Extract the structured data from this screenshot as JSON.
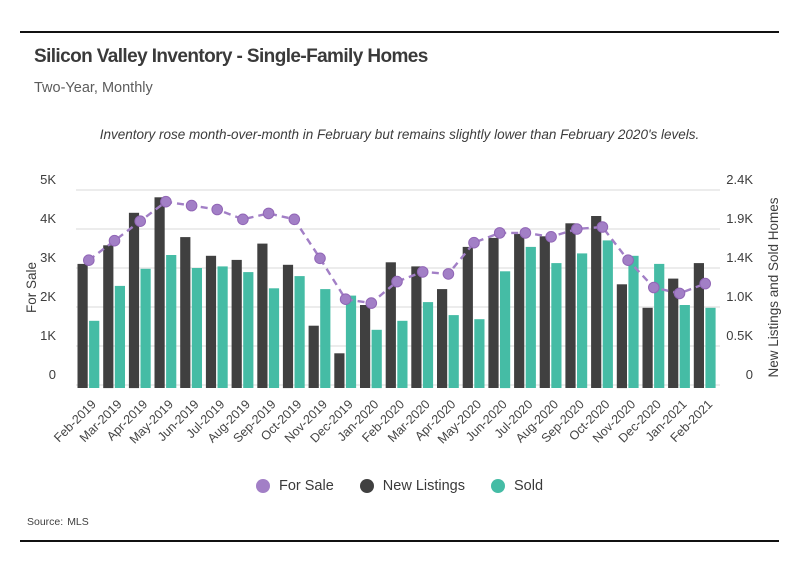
{
  "header": {
    "title": "Silicon Valley Inventory - Single-Family Homes",
    "subtitle": "Two-Year, Monthly",
    "annotation": "Inventory rose month-over-month in February but remains slightly lower than February 2020's levels."
  },
  "footer": {
    "source_label": "Source:",
    "source_value": "MLS"
  },
  "colors": {
    "for_sale": "#A27FC6",
    "for_sale_stroke": "#9166B6",
    "new_listings": "#404040",
    "sold": "#45BCA5",
    "grid": "#D9D9D9",
    "tick_text": "#3d3d3d",
    "axis_title_text": "#3d3d3d",
    "month_text": "#444444"
  },
  "chart_data": {
    "type": "bar+line",
    "title": "Silicon Valley Inventory - Single-Family Homes",
    "subtitle": "Two-Year, Monthly",
    "annotation": "Inventory rose month-over-month in February but remains slightly lower than February 2020's levels.",
    "grid": "horizontal-only",
    "categories": [
      "Feb-2019",
      "Mar-2019",
      "Apr-2019",
      "May-2019",
      "Jun-2019",
      "Jul-2019",
      "Aug-2019",
      "Sep-2019",
      "Oct-2019",
      "Nov-2019",
      "Dec-2019",
      "Jan-2020",
      "Feb-2020",
      "Mar-2020",
      "Apr-2020",
      "May-2020",
      "Jun-2020",
      "Jul-2020",
      "Aug-2020",
      "Sep-2020",
      "Oct-2020",
      "Nov-2020",
      "Dec-2020",
      "Jan-2021",
      "Feb-2021"
    ],
    "series": [
      {
        "name": "For Sale",
        "type": "line",
        "axis": "left",
        "style": "dashed-with-dots",
        "values": [
          3200,
          3700,
          4200,
          4700,
          4600,
          4500,
          4250,
          4400,
          4250,
          3250,
          2200,
          2100,
          2650,
          2900,
          2850,
          3650,
          3900,
          3900,
          3800,
          4000,
          4050,
          3200,
          2500,
          2350,
          2600
        ]
      },
      {
        "name": "New Listings",
        "type": "bar",
        "axis": "right",
        "values": [
          1490,
          1720,
          2120,
          2310,
          1820,
          1590,
          1540,
          1740,
          1480,
          730,
          390,
          985,
          1510,
          1460,
          1180,
          1700,
          1810,
          1860,
          1830,
          1990,
          2080,
          1240,
          950,
          1310,
          1500
        ]
      },
      {
        "name": "Sold",
        "type": "bar",
        "axis": "right",
        "values": [
          790,
          1220,
          1430,
          1600,
          1440,
          1460,
          1390,
          1190,
          1340,
          1180,
          1100,
          680,
          790,
          1020,
          860,
          810,
          1400,
          1700,
          1500,
          1620,
          1780,
          1590,
          1490,
          985,
          950
        ]
      }
    ],
    "left_axis": {
      "title": "For Sale",
      "min": 0,
      "max": 5000,
      "ticks": [
        "5K",
        "4K",
        "3K",
        "2K",
        "1K",
        "0"
      ],
      "tick_values": [
        5000,
        4000,
        3000,
        2000,
        1000,
        0
      ]
    },
    "right_axis": {
      "title": "New Listings and Sold Homes",
      "min": 0,
      "max": 2400,
      "ticks": [
        "2.4K",
        "1.9K",
        "1.4K",
        "1.0K",
        "0.5K",
        "0"
      ],
      "tick_values": [
        2400,
        1920,
        1440,
        960,
        480,
        0
      ]
    },
    "legend": [
      {
        "label": "For Sale",
        "color_key": "for_sale"
      },
      {
        "label": "New Listings",
        "color_key": "new_listings"
      },
      {
        "label": "Sold",
        "color_key": "sold"
      }
    ],
    "legend_position": "bottom-center"
  }
}
